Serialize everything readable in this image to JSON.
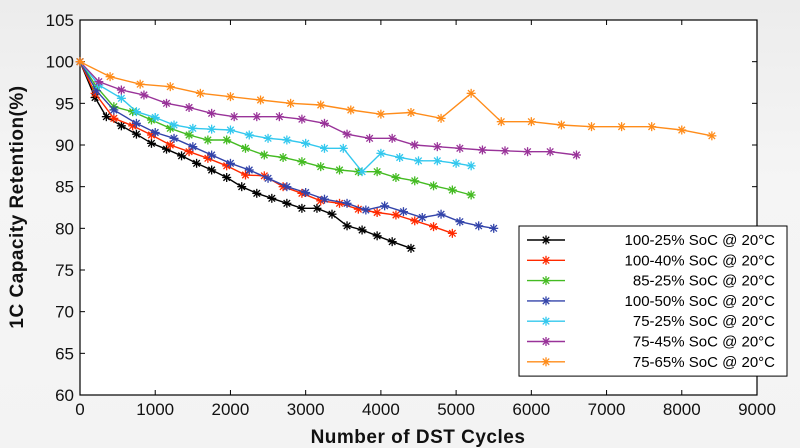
{
  "chart_data": {
    "type": "line",
    "title": "",
    "xlabel": "Number of DST Cycles",
    "ylabel": "1C Capacity Retention(%)",
    "xlim": [
      0,
      9000
    ],
    "ylim": [
      60,
      105
    ],
    "xticks": [
      "0",
      "1000",
      "2000",
      "3000",
      "4000",
      "5000",
      "6000",
      "7000",
      "8000",
      "9000"
    ],
    "yticks": [
      "60",
      "65",
      "70",
      "75",
      "80",
      "85",
      "90",
      "95",
      "100",
      "105"
    ],
    "grid": false,
    "legend_position": "bottom-right",
    "series": [
      {
        "name": "100-25% SoC @ 20°C",
        "color": "#000000",
        "x": [
          0,
          200,
          350,
          550,
          750,
          950,
          1150,
          1350,
          1550,
          1750,
          1950,
          2150,
          2350,
          2550,
          2750,
          2950,
          3150,
          3350,
          3550,
          3750,
          3950,
          4150,
          4400
        ],
        "y": [
          100,
          95.7,
          93.4,
          92.3,
          91.3,
          90.2,
          89.5,
          88.7,
          87.8,
          87.0,
          86.1,
          85.0,
          84.2,
          83.6,
          83.0,
          82.4,
          82.4,
          81.7,
          80.3,
          79.8,
          79.1,
          78.4,
          77.6
        ]
      },
      {
        "name": "100-40% SoC @ 20°C",
        "color": "#ff2a00",
        "x": [
          0,
          200,
          450,
          700,
          950,
          1200,
          1450,
          1700,
          1950,
          2200,
          2450,
          2700,
          2950,
          3200,
          3450,
          3700,
          3950,
          4200,
          4450,
          4700,
          4950
        ],
        "y": [
          100,
          96.2,
          93.2,
          92.3,
          91.2,
          90.0,
          89.2,
          88.4,
          87.5,
          86.4,
          86.3,
          85.0,
          84.2,
          83.3,
          83.0,
          82.3,
          81.9,
          81.6,
          80.9,
          80.2,
          79.4
        ]
      },
      {
        "name": "85-25% SoC @ 20°C",
        "color": "#44bb22",
        "x": [
          0,
          220,
          450,
          700,
          950,
          1200,
          1450,
          1700,
          1950,
          2200,
          2450,
          2700,
          2950,
          3200,
          3450,
          3700,
          3950,
          4200,
          4450,
          4700,
          4950,
          5200
        ],
        "y": [
          100,
          97.0,
          94.6,
          94.0,
          93.0,
          92.0,
          91.2,
          90.6,
          90.6,
          89.6,
          88.8,
          88.5,
          88.0,
          87.4,
          87.0,
          86.8,
          86.8,
          86.1,
          85.7,
          85.1,
          84.6,
          84.0
        ]
      },
      {
        "name": "100-50% SoC @ 20°C",
        "color": "#3344aa",
        "x": [
          0,
          220,
          450,
          750,
          1000,
          1250,
          1500,
          1750,
          2000,
          2250,
          2500,
          2750,
          3000,
          3250,
          3550,
          3800,
          4050,
          4300,
          4550,
          4800,
          5050,
          5300,
          5500
        ],
        "y": [
          100,
          96.5,
          94.2,
          92.6,
          91.5,
          90.8,
          89.8,
          88.8,
          87.8,
          87.0,
          86.0,
          85.0,
          84.3,
          83.5,
          83.0,
          82.2,
          82.7,
          82.0,
          81.3,
          81.7,
          80.8,
          80.3,
          80.0
        ]
      },
      {
        "name": "75-25% SoC @ 20°C",
        "color": "#33c8ee",
        "x": [
          0,
          250,
          550,
          750,
          1000,
          1250,
          1500,
          1750,
          2000,
          2250,
          2500,
          2750,
          3000,
          3250,
          3500,
          3750,
          4000,
          4250,
          4500,
          4750,
          5000,
          5200
        ],
        "y": [
          100,
          97.2,
          95.6,
          94.0,
          93.3,
          92.4,
          92.0,
          91.9,
          91.8,
          91.2,
          90.8,
          90.6,
          90.2,
          89.6,
          89.6,
          86.8,
          89.0,
          88.5,
          88.1,
          88.1,
          87.8,
          87.5
        ]
      },
      {
        "name": "75-45% SoC @ 20°C",
        "color": "#993399",
        "x": [
          0,
          250,
          550,
          850,
          1150,
          1450,
          1750,
          2050,
          2350,
          2650,
          2950,
          3250,
          3550,
          3850,
          4150,
          4450,
          4750,
          5050,
          5350,
          5650,
          5950,
          6250,
          6600
        ],
        "y": [
          100,
          97.6,
          96.6,
          96.0,
          95.0,
          94.5,
          93.8,
          93.4,
          93.4,
          93.4,
          93.1,
          92.6,
          91.3,
          90.8,
          90.8,
          90.0,
          89.8,
          89.6,
          89.4,
          89.3,
          89.2,
          89.2,
          88.8
        ]
      },
      {
        "name": "75-65% SoC @ 20°C",
        "color": "#ff8c1a",
        "x": [
          0,
          400,
          800,
          1200,
          1600,
          2000,
          2400,
          2800,
          3200,
          3600,
          4000,
          4400,
          4800,
          5200,
          5600,
          6000,
          6400,
          6800,
          7200,
          7600,
          8000,
          8400
        ],
        "y": [
          100,
          98.2,
          97.3,
          97.0,
          96.2,
          95.8,
          95.4,
          95.0,
          94.8,
          94.2,
          93.7,
          93.9,
          93.2,
          96.2,
          92.8,
          92.8,
          92.4,
          92.2,
          92.2,
          92.2,
          91.8,
          91.1
        ]
      }
    ]
  }
}
